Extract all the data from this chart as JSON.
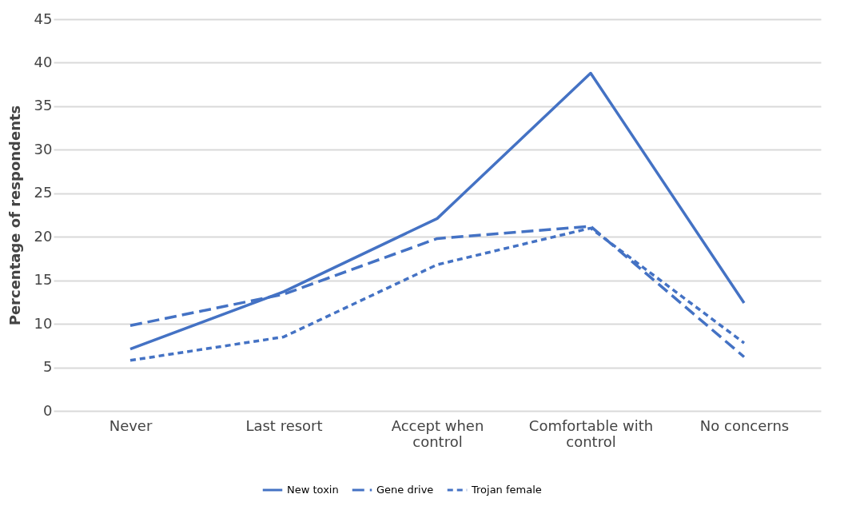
{
  "chart_data": {
    "type": "line",
    "ylabel": "Percentage of respondents",
    "categories": [
      "Never",
      "Last resort",
      "Accept when control",
      "Comfortable with control",
      "No concerns"
    ],
    "series": [
      {
        "name": "New toxin",
        "color": "#4472c4",
        "line_style": "solid",
        "values": [
          7.1,
          13.7,
          22.1,
          38.8,
          12.4
        ]
      },
      {
        "name": "Gene drive",
        "color": "#4472c4",
        "line_style": "dashed",
        "values": [
          9.8,
          13.4,
          19.8,
          21.2,
          6.2
        ]
      },
      {
        "name": "Trojan female",
        "color": "#4472c4",
        "line_style": "dotted",
        "values": [
          5.8,
          8.5,
          16.8,
          21.0,
          7.8
        ]
      }
    ],
    "ylim": [
      0,
      45
    ],
    "yticks": [
      0,
      5,
      10,
      15,
      20,
      25,
      30,
      35,
      40,
      45
    ],
    "grid": "y",
    "legend": "bottom",
    "marker": "none"
  }
}
